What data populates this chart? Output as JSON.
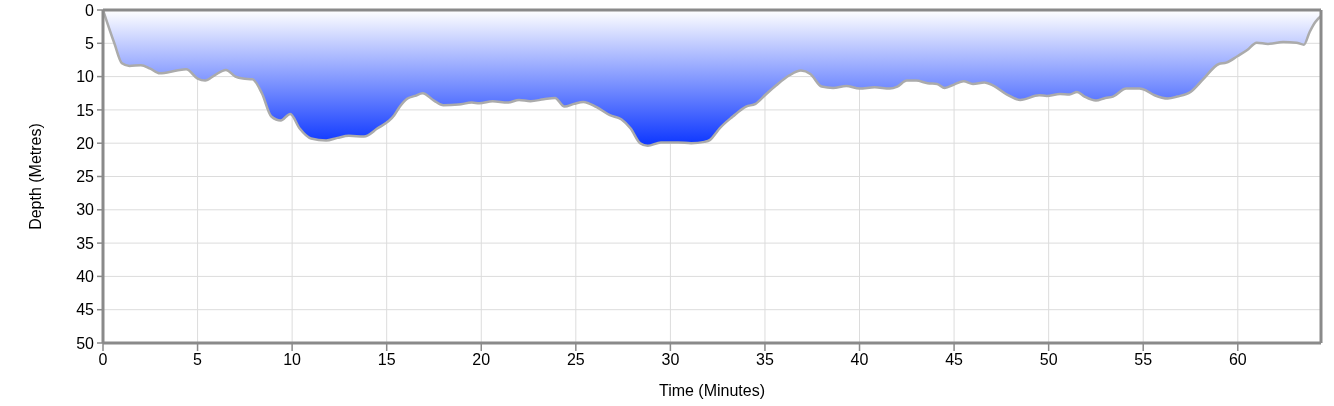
{
  "chart_data": {
    "type": "area",
    "xlabel": "Time (Minutes)",
    "ylabel": "Depth (Metres)",
    "x": [
      0,
      0.6,
      1.0,
      1.4,
      2.0,
      2.5,
      3.0,
      3.9,
      4.4,
      5.0,
      5.4,
      5.9,
      6.5,
      7.0,
      7.4,
      7.9,
      8.4,
      8.9,
      9.4,
      9.9,
      10.4,
      11.0,
      11.8,
      12.4,
      13.0,
      13.8,
      14.5,
      15.4,
      15.7,
      16.1,
      16.5,
      16.9,
      17.5,
      18.0,
      18.8,
      19.5,
      19.9,
      20.6,
      21.4,
      22.0,
      22.6,
      23.3,
      23.9,
      24.4,
      24.9,
      25.4,
      26.1,
      26.8,
      27.4,
      27.9,
      28.4,
      28.8,
      29.5,
      30.4,
      31.1,
      31.8,
      32.1,
      32.4,
      32.6,
      33.3,
      34.0,
      34.5,
      35.0,
      35.6,
      36.3,
      36.9,
      37.4,
      38.0,
      38.6,
      39.3,
      40.0,
      40.8,
      41.6,
      42.0,
      42.5,
      43.0,
      43.6,
      44.1,
      44.5,
      45.0,
      45.5,
      46.0,
      46.6,
      47.1,
      47.8,
      48.5,
      49.5,
      49.9,
      50.6,
      51.1,
      51.5,
      51.9,
      52.5,
      53.0,
      53.4,
      54.1,
      54.8,
      55.0,
      55.6,
      56.3,
      56.8,
      57.5,
      58.2,
      59.0,
      59.4,
      60.0,
      60.5,
      61.0,
      61.6,
      62.4,
      63.1,
      63.5,
      63.8,
      64.1,
      64.4
    ],
    "values": [
      0,
      5.0,
      8.0,
      8.4,
      8.3,
      8.8,
      9.5,
      9.1,
      8.9,
      10.3,
      10.6,
      9.8,
      9.0,
      10.0,
      10.3,
      10.4,
      12.5,
      16.0,
      16.6,
      15.6,
      17.8,
      19.3,
      19.6,
      19.2,
      18.9,
      19.0,
      17.8,
      15.8,
      14.5,
      13.3,
      12.9,
      12.5,
      13.6,
      14.3,
      14.2,
      13.9,
      14.0,
      13.7,
      13.9,
      13.5,
      13.7,
      13.4,
      13.2,
      14.5,
      14.1,
      13.8,
      14.6,
      15.8,
      16.4,
      17.8,
      20.0,
      20.4,
      19.9,
      19.9,
      20.0,
      19.8,
      19.5,
      18.5,
      17.8,
      16.0,
      14.5,
      14.1,
      12.8,
      11.3,
      9.8,
      9.1,
      9.6,
      11.5,
      11.7,
      11.4,
      11.8,
      11.6,
      11.8,
      11.5,
      10.6,
      10.6,
      11.0,
      11.1,
      11.7,
      11.2,
      10.7,
      11.1,
      10.9,
      11.4,
      12.7,
      13.5,
      12.8,
      12.9,
      12.6,
      12.7,
      12.3,
      13.0,
      13.6,
      13.2,
      13.0,
      11.8,
      11.8,
      11.9,
      12.8,
      13.3,
      13.0,
      12.3,
      10.3,
      8.1,
      7.9,
      6.9,
      6.0,
      4.9,
      5.1,
      4.8,
      4.9,
      5.2,
      3.3,
      1.8,
      0.9
    ],
    "color": "#0b35ff",
    "xlim": [
      0,
      64.4
    ],
    "xticks": [
      0,
      5,
      10,
      15,
      20,
      25,
      30,
      35,
      40,
      45,
      50,
      55,
      60
    ],
    "ylim": [
      50,
      0
    ],
    "yticks": [
      0,
      5,
      10,
      15,
      20,
      25,
      30,
      35,
      40,
      45,
      50
    ],
    "grid": true
  }
}
